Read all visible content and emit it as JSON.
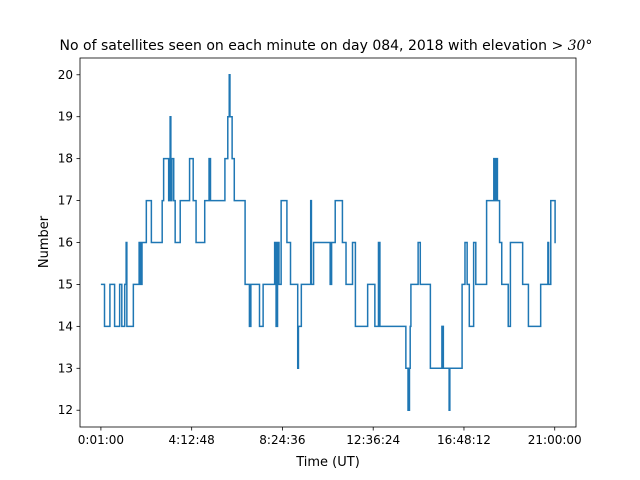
{
  "chart_data": {
    "type": "line",
    "title_text": "No of satellites seen on each minute on day 084, 2018 with elevation ",
    "title_math": "> 30°",
    "xlabel": "Time (UT)",
    "ylabel": "Number",
    "xlim": [
      -58,
      1318
    ],
    "ylim": [
      11.6,
      20.4
    ],
    "x_ticks": [
      {
        "value": 0,
        "label": "0:01:00"
      },
      {
        "value": 251.8,
        "label": "4:12:48"
      },
      {
        "value": 503.6,
        "label": "8:24:36"
      },
      {
        "value": 755.4,
        "label": "12:36:24"
      },
      {
        "value": 1007.2,
        "label": "16:48:12"
      },
      {
        "value": 1259,
        "label": "21:00:00"
      }
    ],
    "y_ticks": [
      12,
      13,
      14,
      15,
      16,
      17,
      18,
      19,
      20
    ],
    "grid": false,
    "x_units": "minutes after 0:01:00 UT",
    "series": [
      {
        "name": "satellites",
        "color": "#1f77b4",
        "points": [
          [
            0,
            15
          ],
          [
            10,
            15
          ],
          [
            10,
            14
          ],
          [
            25,
            14
          ],
          [
            25,
            15
          ],
          [
            38,
            15
          ],
          [
            38,
            14
          ],
          [
            52,
            14
          ],
          [
            52,
            15
          ],
          [
            58,
            15
          ],
          [
            58,
            14
          ],
          [
            66,
            14
          ],
          [
            66,
            15
          ],
          [
            70,
            15
          ],
          [
            70,
            16
          ],
          [
            72,
            16
          ],
          [
            72,
            14
          ],
          [
            90,
            14
          ],
          [
            90,
            15
          ],
          [
            106,
            15
          ],
          [
            106,
            16
          ],
          [
            110,
            16
          ],
          [
            110,
            15
          ],
          [
            114,
            15
          ],
          [
            114,
            16
          ],
          [
            118,
            16
          ],
          [
            118,
            16
          ],
          [
            126,
            16
          ],
          [
            126,
            17
          ],
          [
            140,
            17
          ],
          [
            140,
            16
          ],
          [
            170,
            16
          ],
          [
            170,
            17
          ],
          [
            174,
            17
          ],
          [
            174,
            18
          ],
          [
            188,
            18
          ],
          [
            188,
            17
          ],
          [
            192,
            17
          ],
          [
            192,
            19
          ],
          [
            194,
            19
          ],
          [
            194,
            17
          ],
          [
            197,
            17
          ],
          [
            197,
            18
          ],
          [
            202,
            18
          ],
          [
            202,
            17
          ],
          [
            206,
            17
          ],
          [
            206,
            16
          ],
          [
            220,
            16
          ],
          [
            220,
            17
          ],
          [
            246,
            17
          ],
          [
            246,
            18
          ],
          [
            256,
            18
          ],
          [
            256,
            17
          ],
          [
            264,
            17
          ],
          [
            264,
            16
          ],
          [
            288,
            16
          ],
          [
            288,
            17
          ],
          [
            300,
            17
          ],
          [
            300,
            18
          ],
          [
            304,
            18
          ],
          [
            304,
            17
          ],
          [
            344,
            17
          ],
          [
            344,
            18
          ],
          [
            352,
            18
          ],
          [
            352,
            19
          ],
          [
            356,
            19
          ],
          [
            356,
            20
          ],
          [
            358,
            20
          ],
          [
            358,
            19
          ],
          [
            364,
            19
          ],
          [
            364,
            18
          ],
          [
            370,
            18
          ],
          [
            370,
            17
          ],
          [
            400,
            17
          ],
          [
            400,
            15
          ],
          [
            412,
            15
          ],
          [
            412,
            14
          ],
          [
            416,
            14
          ],
          [
            416,
            15
          ],
          [
            440,
            15
          ],
          [
            440,
            14
          ],
          [
            450,
            14
          ],
          [
            450,
            15
          ],
          [
            482,
            15
          ],
          [
            482,
            16
          ],
          [
            486,
            16
          ],
          [
            486,
            14
          ],
          [
            490,
            14
          ],
          [
            490,
            16
          ],
          [
            494,
            16
          ],
          [
            494,
            15
          ],
          [
            500,
            15
          ],
          [
            500,
            17
          ],
          [
            516,
            17
          ],
          [
            516,
            16
          ],
          [
            526,
            16
          ],
          [
            526,
            15
          ],
          [
            546,
            15
          ],
          [
            546,
            13
          ],
          [
            548,
            13
          ],
          [
            548,
            14
          ],
          [
            556,
            14
          ],
          [
            556,
            15
          ],
          [
            582,
            15
          ],
          [
            582,
            17
          ],
          [
            584,
            17
          ],
          [
            584,
            15
          ],
          [
            590,
            15
          ],
          [
            590,
            16
          ],
          [
            636,
            16
          ],
          [
            636,
            15
          ],
          [
            640,
            15
          ],
          [
            640,
            16
          ],
          [
            650,
            16
          ],
          [
            650,
            17
          ],
          [
            670,
            17
          ],
          [
            670,
            16
          ],
          [
            680,
            16
          ],
          [
            680,
            15
          ],
          [
            698,
            15
          ],
          [
            698,
            16
          ],
          [
            706,
            16
          ],
          [
            706,
            14
          ],
          [
            740,
            14
          ],
          [
            740,
            15
          ],
          [
            760,
            15
          ],
          [
            760,
            14
          ],
          [
            770,
            14
          ],
          [
            770,
            16
          ],
          [
            774,
            16
          ],
          [
            774,
            14
          ],
          [
            800,
            14
          ],
          [
            800,
            14
          ],
          [
            846,
            14
          ],
          [
            846,
            13
          ],
          [
            852,
            13
          ],
          [
            852,
            12
          ],
          [
            856,
            12
          ],
          [
            856,
            13
          ],
          [
            858,
            13
          ],
          [
            858,
            14
          ],
          [
            860,
            14
          ],
          [
            860,
            15
          ],
          [
            880,
            15
          ],
          [
            880,
            16
          ],
          [
            886,
            16
          ],
          [
            886,
            15
          ],
          [
            914,
            15
          ],
          [
            914,
            13
          ],
          [
            946,
            13
          ],
          [
            946,
            14
          ],
          [
            950,
            14
          ],
          [
            950,
            13
          ],
          [
            966,
            13
          ],
          [
            966,
            12
          ],
          [
            968,
            12
          ],
          [
            968,
            13
          ],
          [
            1002,
            13
          ],
          [
            1002,
            15
          ],
          [
            1010,
            15
          ],
          [
            1010,
            16
          ],
          [
            1016,
            16
          ],
          [
            1016,
            15
          ],
          [
            1022,
            15
          ],
          [
            1022,
            14
          ],
          [
            1034,
            14
          ],
          [
            1034,
            16
          ],
          [
            1040,
            16
          ],
          [
            1040,
            15
          ],
          [
            1070,
            15
          ],
          [
            1070,
            17
          ],
          [
            1090,
            17
          ],
          [
            1090,
            18
          ],
          [
            1094,
            18
          ],
          [
            1094,
            17
          ],
          [
            1096,
            17
          ],
          [
            1096,
            18
          ],
          [
            1100,
            18
          ],
          [
            1100,
            17
          ],
          [
            1106,
            17
          ],
          [
            1106,
            16
          ],
          [
            1112,
            16
          ],
          [
            1112,
            15
          ],
          [
            1130,
            15
          ],
          [
            1130,
            14
          ],
          [
            1136,
            14
          ],
          [
            1136,
            16
          ],
          [
            1170,
            16
          ],
          [
            1170,
            15
          ],
          [
            1186,
            15
          ],
          [
            1186,
            14
          ],
          [
            1220,
            14
          ],
          [
            1220,
            15
          ],
          [
            1240,
            15
          ],
          [
            1240,
            16
          ],
          [
            1242,
            16
          ],
          [
            1242,
            15
          ],
          [
            1248,
            15
          ],
          [
            1248,
            17
          ],
          [
            1260,
            17
          ],
          [
            1260,
            16
          ],
          [
            1262,
            16
          ]
        ]
      }
    ]
  }
}
